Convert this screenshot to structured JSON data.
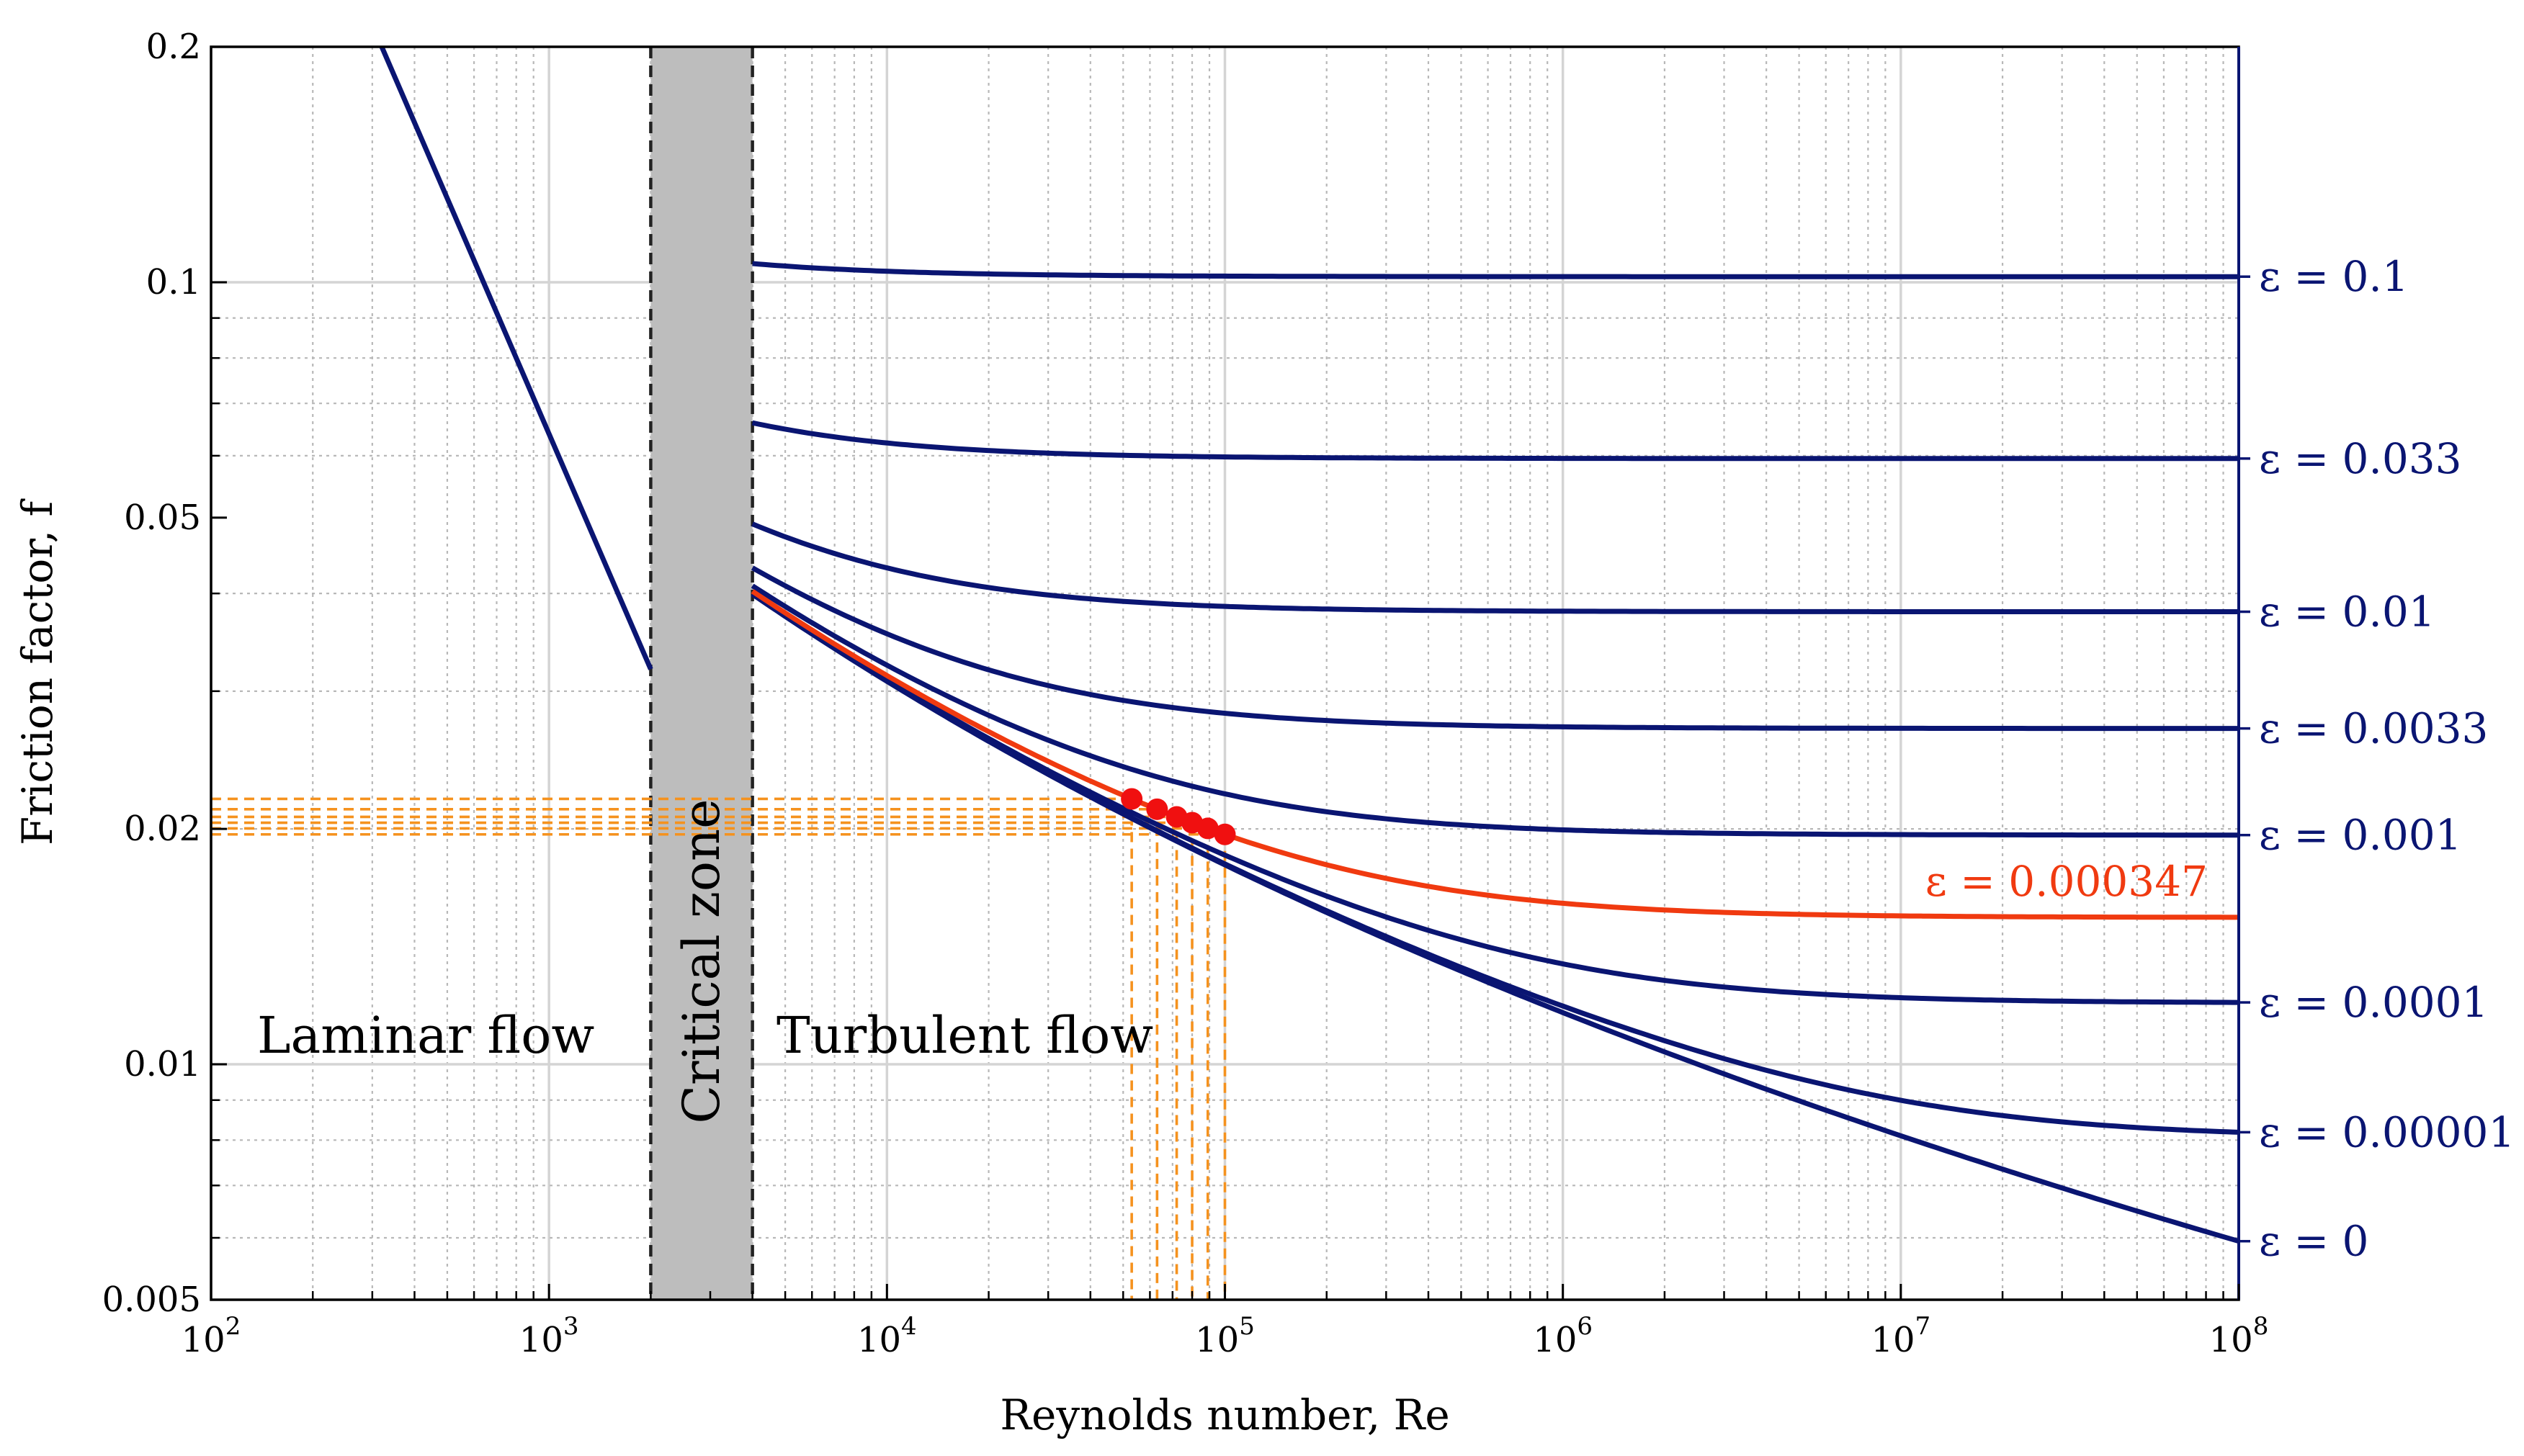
{
  "chart_data": {
    "type": "line",
    "title": "",
    "xlabel": "Reynolds number, Re",
    "ylabel": "Friction factor, f",
    "xscale": "log",
    "yscale": "log",
    "xlim": [
      100,
      100000000
    ],
    "ylim": [
      0.005,
      0.2
    ],
    "grid": true,
    "x_ticks": [
      {
        "value": 100,
        "base": "10",
        "exp": "2"
      },
      {
        "value": 1000,
        "base": "10",
        "exp": "3"
      },
      {
        "value": 10000,
        "base": "10",
        "exp": "4"
      },
      {
        "value": 100000,
        "base": "10",
        "exp": "5"
      },
      {
        "value": 1000000,
        "base": "10",
        "exp": "6"
      },
      {
        "value": 10000000,
        "base": "10",
        "exp": "7"
      },
      {
        "value": 100000000,
        "base": "10",
        "exp": "8"
      }
    ],
    "y_ticks": [
      {
        "value": 0.2,
        "label": "0.2"
      },
      {
        "value": 0.1,
        "label": "0.1"
      },
      {
        "value": 0.05,
        "label": "0.05"
      },
      {
        "value": 0.02,
        "label": "0.02"
      },
      {
        "value": 0.01,
        "label": "0.01"
      },
      {
        "value": 0.005,
        "label": "0.005"
      }
    ],
    "regions": [
      {
        "name": "laminar",
        "label": "Laminar flow",
        "x": 300
      },
      {
        "name": "critical",
        "label": "Critical zone",
        "x_range": [
          2000,
          4000
        ]
      },
      {
        "name": "turbulent",
        "label": "Turbulent flow",
        "x": 60000
      }
    ],
    "laminar_line": {
      "x_range": [
        320,
        2000
      ],
      "f_formula": "64/Re"
    },
    "turbulent_x_range": [
      4000,
      100000000
    ],
    "series": [
      {
        "name": "eps_0.1",
        "label": "ε = 0.1",
        "epsilon": 0.1,
        "color": "#0a1572"
      },
      {
        "name": "eps_0.033",
        "label": "ε = 0.033",
        "epsilon": 0.033,
        "color": "#0a1572"
      },
      {
        "name": "eps_0.01",
        "label": "ε = 0.01",
        "epsilon": 0.01,
        "color": "#0a1572"
      },
      {
        "name": "eps_0.0033",
        "label": "ε = 0.0033",
        "epsilon": 0.0033,
        "color": "#0a1572"
      },
      {
        "name": "eps_0.001",
        "label": "ε = 0.001",
        "epsilon": 0.001,
        "color": "#0a1572"
      },
      {
        "name": "eps_0.0001",
        "label": "ε = 0.0001",
        "epsilon": 0.0001,
        "color": "#0a1572"
      },
      {
        "name": "eps_0.00001",
        "label": "ε = 0.00001",
        "epsilon": 1e-05,
        "color": "#0a1572"
      },
      {
        "name": "eps_0",
        "label": "ε = 0",
        "epsilon": 0,
        "color": "#0a1572"
      },
      {
        "name": "eps_0.000347",
        "label": "ε = 0.000347",
        "epsilon": 0.000347,
        "color": "#f03a10",
        "highlight": true
      }
    ],
    "highlight_points": {
      "epsilon": 0.000347,
      "color": "#f01010",
      "reference_line_color": "#f5921e",
      "re_values": [
        53000,
        63000,
        72000,
        80000,
        89000,
        100000
      ]
    }
  }
}
